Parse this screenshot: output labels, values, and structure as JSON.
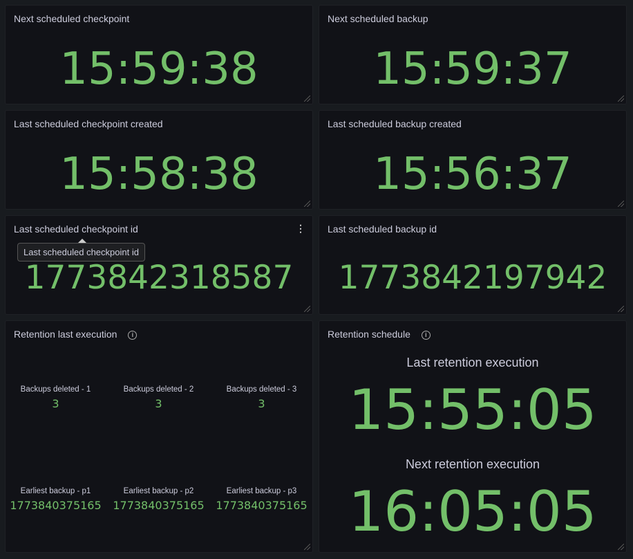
{
  "panels": {
    "next_checkpoint": {
      "title": "Next scheduled checkpoint",
      "value": "15:59:38"
    },
    "next_backup": {
      "title": "Next scheduled backup",
      "value": "15:59:37"
    },
    "last_checkpoint_created": {
      "title": "Last scheduled checkpoint created",
      "value": "15:58:38"
    },
    "last_backup_created": {
      "title": "Last scheduled backup created",
      "value": "15:56:37"
    },
    "last_checkpoint_id": {
      "title": "Last scheduled checkpoint id",
      "value": "1773842318587",
      "tooltip": "Last scheduled checkpoint id"
    },
    "last_backup_id": {
      "title": "Last scheduled backup id",
      "value": "1773842197942"
    },
    "retention_last": {
      "title": "Retention last execution",
      "cells": [
        {
          "label": "Backups deleted - 1",
          "value": "3"
        },
        {
          "label": "Backups deleted - 2",
          "value": "3"
        },
        {
          "label": "Backups deleted - 3",
          "value": "3"
        },
        {
          "label": "Earliest backup - p1",
          "value": "1773840375165"
        },
        {
          "label": "Earliest backup - p2",
          "value": "1773840375165"
        },
        {
          "label": "Earliest backup - p3",
          "value": "1773840375165"
        }
      ]
    },
    "retention_schedule": {
      "title": "Retention schedule",
      "last_label": "Last retention execution",
      "last_value": "15:55:05",
      "next_label": "Next retention execution",
      "next_value": "16:05:05"
    }
  },
  "colors": {
    "value": "#73bf69",
    "panel": "#111217",
    "background": "#181b1f"
  }
}
